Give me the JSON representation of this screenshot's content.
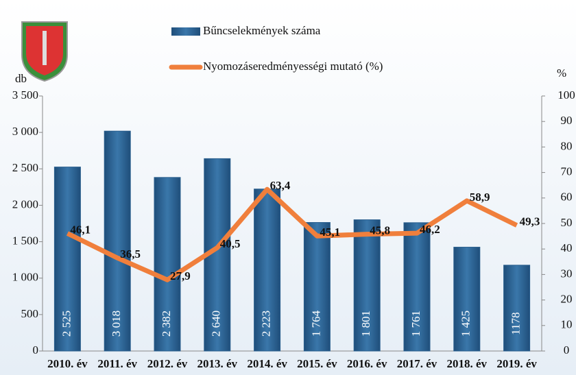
{
  "chart_data": {
    "type": "combo",
    "y_label": "db",
    "y2_label": "%",
    "categories": [
      "2010. év",
      "2011. év",
      "2012. év",
      "2013. év",
      "2014. év",
      "2015. év",
      "2016. év",
      "2017. év",
      "2018. év",
      "2019. év"
    ],
    "series": [
      {
        "name": "Bűncselekmények száma",
        "type": "bar",
        "color": "#2a5f8e",
        "values": [
          2525,
          3018,
          2382,
          2640,
          2223,
          1764,
          1801,
          1761,
          1425,
          1178
        ],
        "value_labels": [
          "2 525",
          "3 018",
          "2 382",
          "2 640",
          "2 223",
          "1 764",
          "1 801",
          "1 761",
          "1 425",
          "1178"
        ]
      },
      {
        "name": "Nyomozáseredményességi mutató (%)",
        "type": "line",
        "axis": "y2",
        "color": "#f07f3c",
        "values": [
          46.1,
          36.5,
          27.9,
          40.5,
          63.4,
          45.1,
          45.8,
          46.2,
          58.9,
          49.3
        ],
        "value_labels": [
          "46,1",
          "36,5",
          "27,9",
          "40,5",
          "63,4",
          "45,1",
          "45,8",
          "46,2",
          "58,9",
          "49,3"
        ]
      }
    ],
    "ylim": [
      0,
      3500
    ],
    "yticks": [
      0,
      500,
      {
        "value": 1000,
        "label": "1 000"
      },
      {
        "value": 1500,
        "label": "1 500"
      },
      {
        "value": 2000,
        "label": "2 000"
      },
      {
        "value": 2500,
        "label": "2 500"
      },
      {
        "value": 3000,
        "label": "3 000"
      },
      {
        "value": 3500,
        "label": "3 500"
      }
    ],
    "y2lim": [
      0,
      100
    ],
    "y2ticks": [
      0,
      10,
      20,
      30,
      40,
      50,
      60,
      70,
      80,
      90,
      100
    ]
  }
}
